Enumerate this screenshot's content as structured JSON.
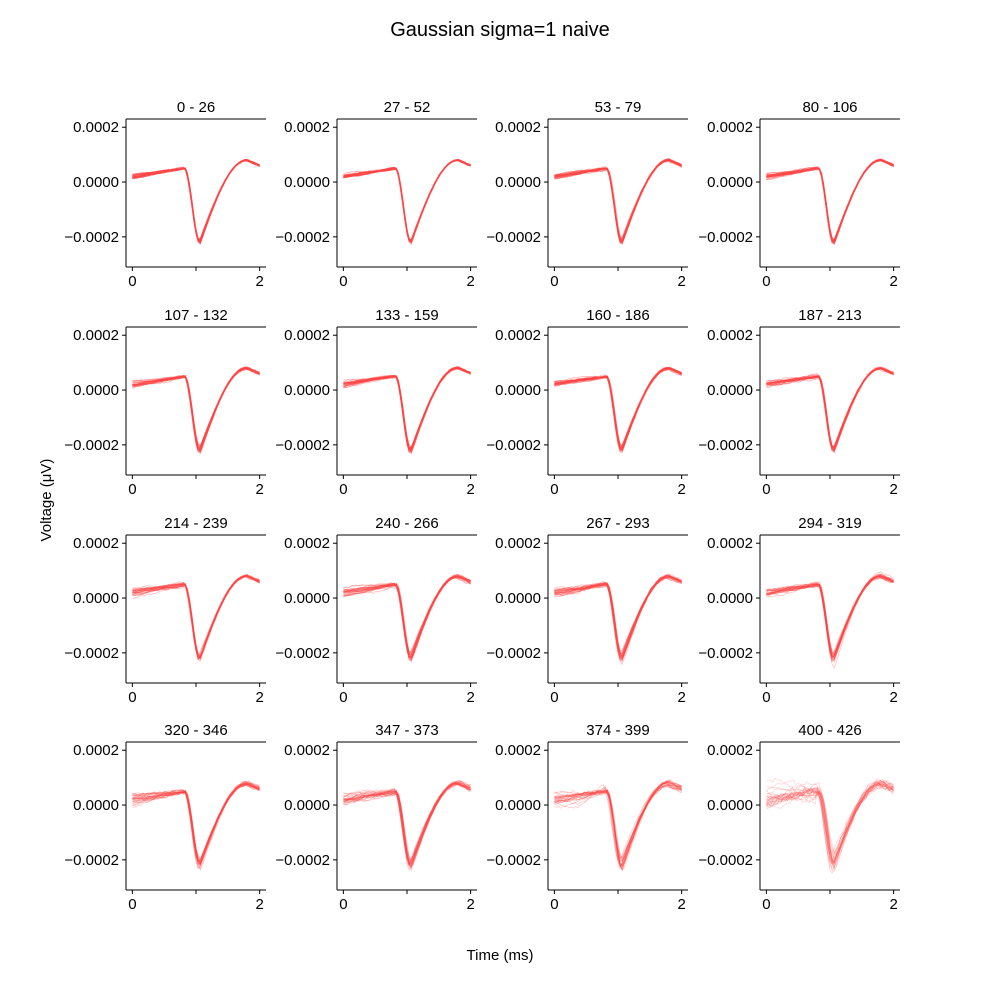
{
  "figure": {
    "title": "Gaussian sigma=1 naive",
    "xlabel": "Time (ms)",
    "ylabel": "Voltage (μV)"
  },
  "chart_data": {
    "type": "line",
    "grid": false,
    "legend": "none",
    "line_color": "#ff4444",
    "xlim": [
      -0.1,
      2.1
    ],
    "ylim": [
      -0.00031,
      0.00023
    ],
    "xticks": [
      0,
      1,
      2
    ],
    "xtick_labels": [
      "0",
      "",
      "2"
    ],
    "yticks": [
      0.0002,
      0.0,
      -0.0002
    ],
    "ytick_labels": [
      "0.0002",
      "0.0000",
      "−0.0002"
    ],
    "panels": [
      {
        "title": "0 - 26",
        "n_traces": 27,
        "spread": 0.3
      },
      {
        "title": "27 - 52",
        "n_traces": 26,
        "spread": 0.35
      },
      {
        "title": "53 - 79",
        "n_traces": 27,
        "spread": 0.4
      },
      {
        "title": "80 - 106",
        "n_traces": 27,
        "spread": 0.4
      },
      {
        "title": "107 - 132",
        "n_traces": 26,
        "spread": 0.45
      },
      {
        "title": "133 - 159",
        "n_traces": 27,
        "spread": 0.5
      },
      {
        "title": "160 - 186",
        "n_traces": 27,
        "spread": 0.5
      },
      {
        "title": "187 - 213",
        "n_traces": 27,
        "spread": 0.55
      },
      {
        "title": "214 - 239",
        "n_traces": 26,
        "spread": 0.6
      },
      {
        "title": "240 - 266",
        "n_traces": 27,
        "spread": 0.65
      },
      {
        "title": "267 - 293",
        "n_traces": 27,
        "spread": 0.65
      },
      {
        "title": "294 - 319",
        "n_traces": 26,
        "spread": 0.7
      },
      {
        "title": "320 - 346",
        "n_traces": 27,
        "spread": 0.8
      },
      {
        "title": "347 - 373",
        "n_traces": 27,
        "spread": 0.9
      },
      {
        "title": "374 - 399",
        "n_traces": 26,
        "spread": 1.0
      },
      {
        "title": "400 - 426",
        "n_traces": 27,
        "spread": 1.6
      }
    ]
  }
}
